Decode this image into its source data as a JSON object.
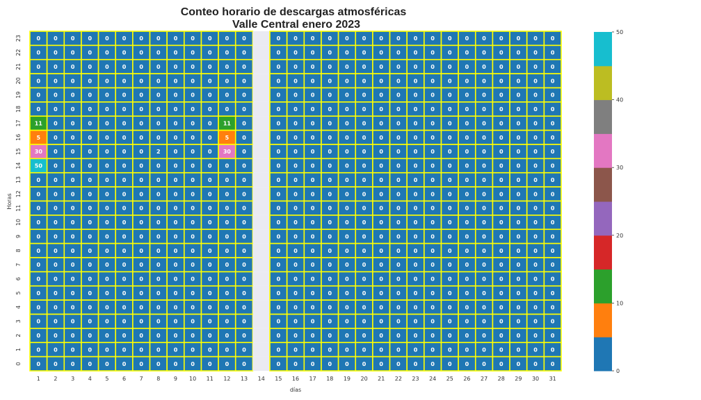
{
  "chart_data": {
    "type": "heatmap",
    "title_lines": [
      "Conteo horario de descargas atmosféricas",
      "Valle Central enero 2023"
    ],
    "xlabel": "días",
    "ylabel": "Horas",
    "x": [
      1,
      2,
      3,
      4,
      5,
      6,
      7,
      8,
      9,
      10,
      11,
      12,
      13,
      14,
      15,
      16,
      17,
      18,
      19,
      20,
      21,
      22,
      23,
      24,
      25,
      26,
      27,
      28,
      29,
      30,
      31
    ],
    "y": [
      23,
      22,
      21,
      20,
      19,
      18,
      17,
      16,
      15,
      14,
      13,
      12,
      11,
      10,
      9,
      8,
      7,
      6,
      5,
      4,
      3,
      2,
      1,
      0
    ],
    "missing_x": [
      14
    ],
    "nonzero_cells": [
      {
        "day": 1,
        "hour": 17,
        "value": 11
      },
      {
        "day": 12,
        "hour": 17,
        "value": 11
      },
      {
        "day": 1,
        "hour": 16,
        "value": 5
      },
      {
        "day": 12,
        "hour": 16,
        "value": 5
      },
      {
        "day": 1,
        "hour": 15,
        "value": 30
      },
      {
        "day": 8,
        "hour": 15,
        "value": 2
      },
      {
        "day": 12,
        "hour": 15,
        "value": 30
      },
      {
        "day": 1,
        "hour": 14,
        "value": 50
      }
    ],
    "default_value": 0,
    "colorbar": {
      "range": [
        0,
        50
      ],
      "ticks": [
        0,
        10,
        20,
        30,
        40,
        50
      ],
      "colors": [
        "#1f77b4",
        "#ff7f0e",
        "#2ca02c",
        "#d62728",
        "#9467bd",
        "#8c564b",
        "#e377c2",
        "#7f7f7f",
        "#bcbd22",
        "#17becf"
      ]
    },
    "cell_border_color": "#ffff00",
    "missing_color": "#eaeaf2"
  }
}
